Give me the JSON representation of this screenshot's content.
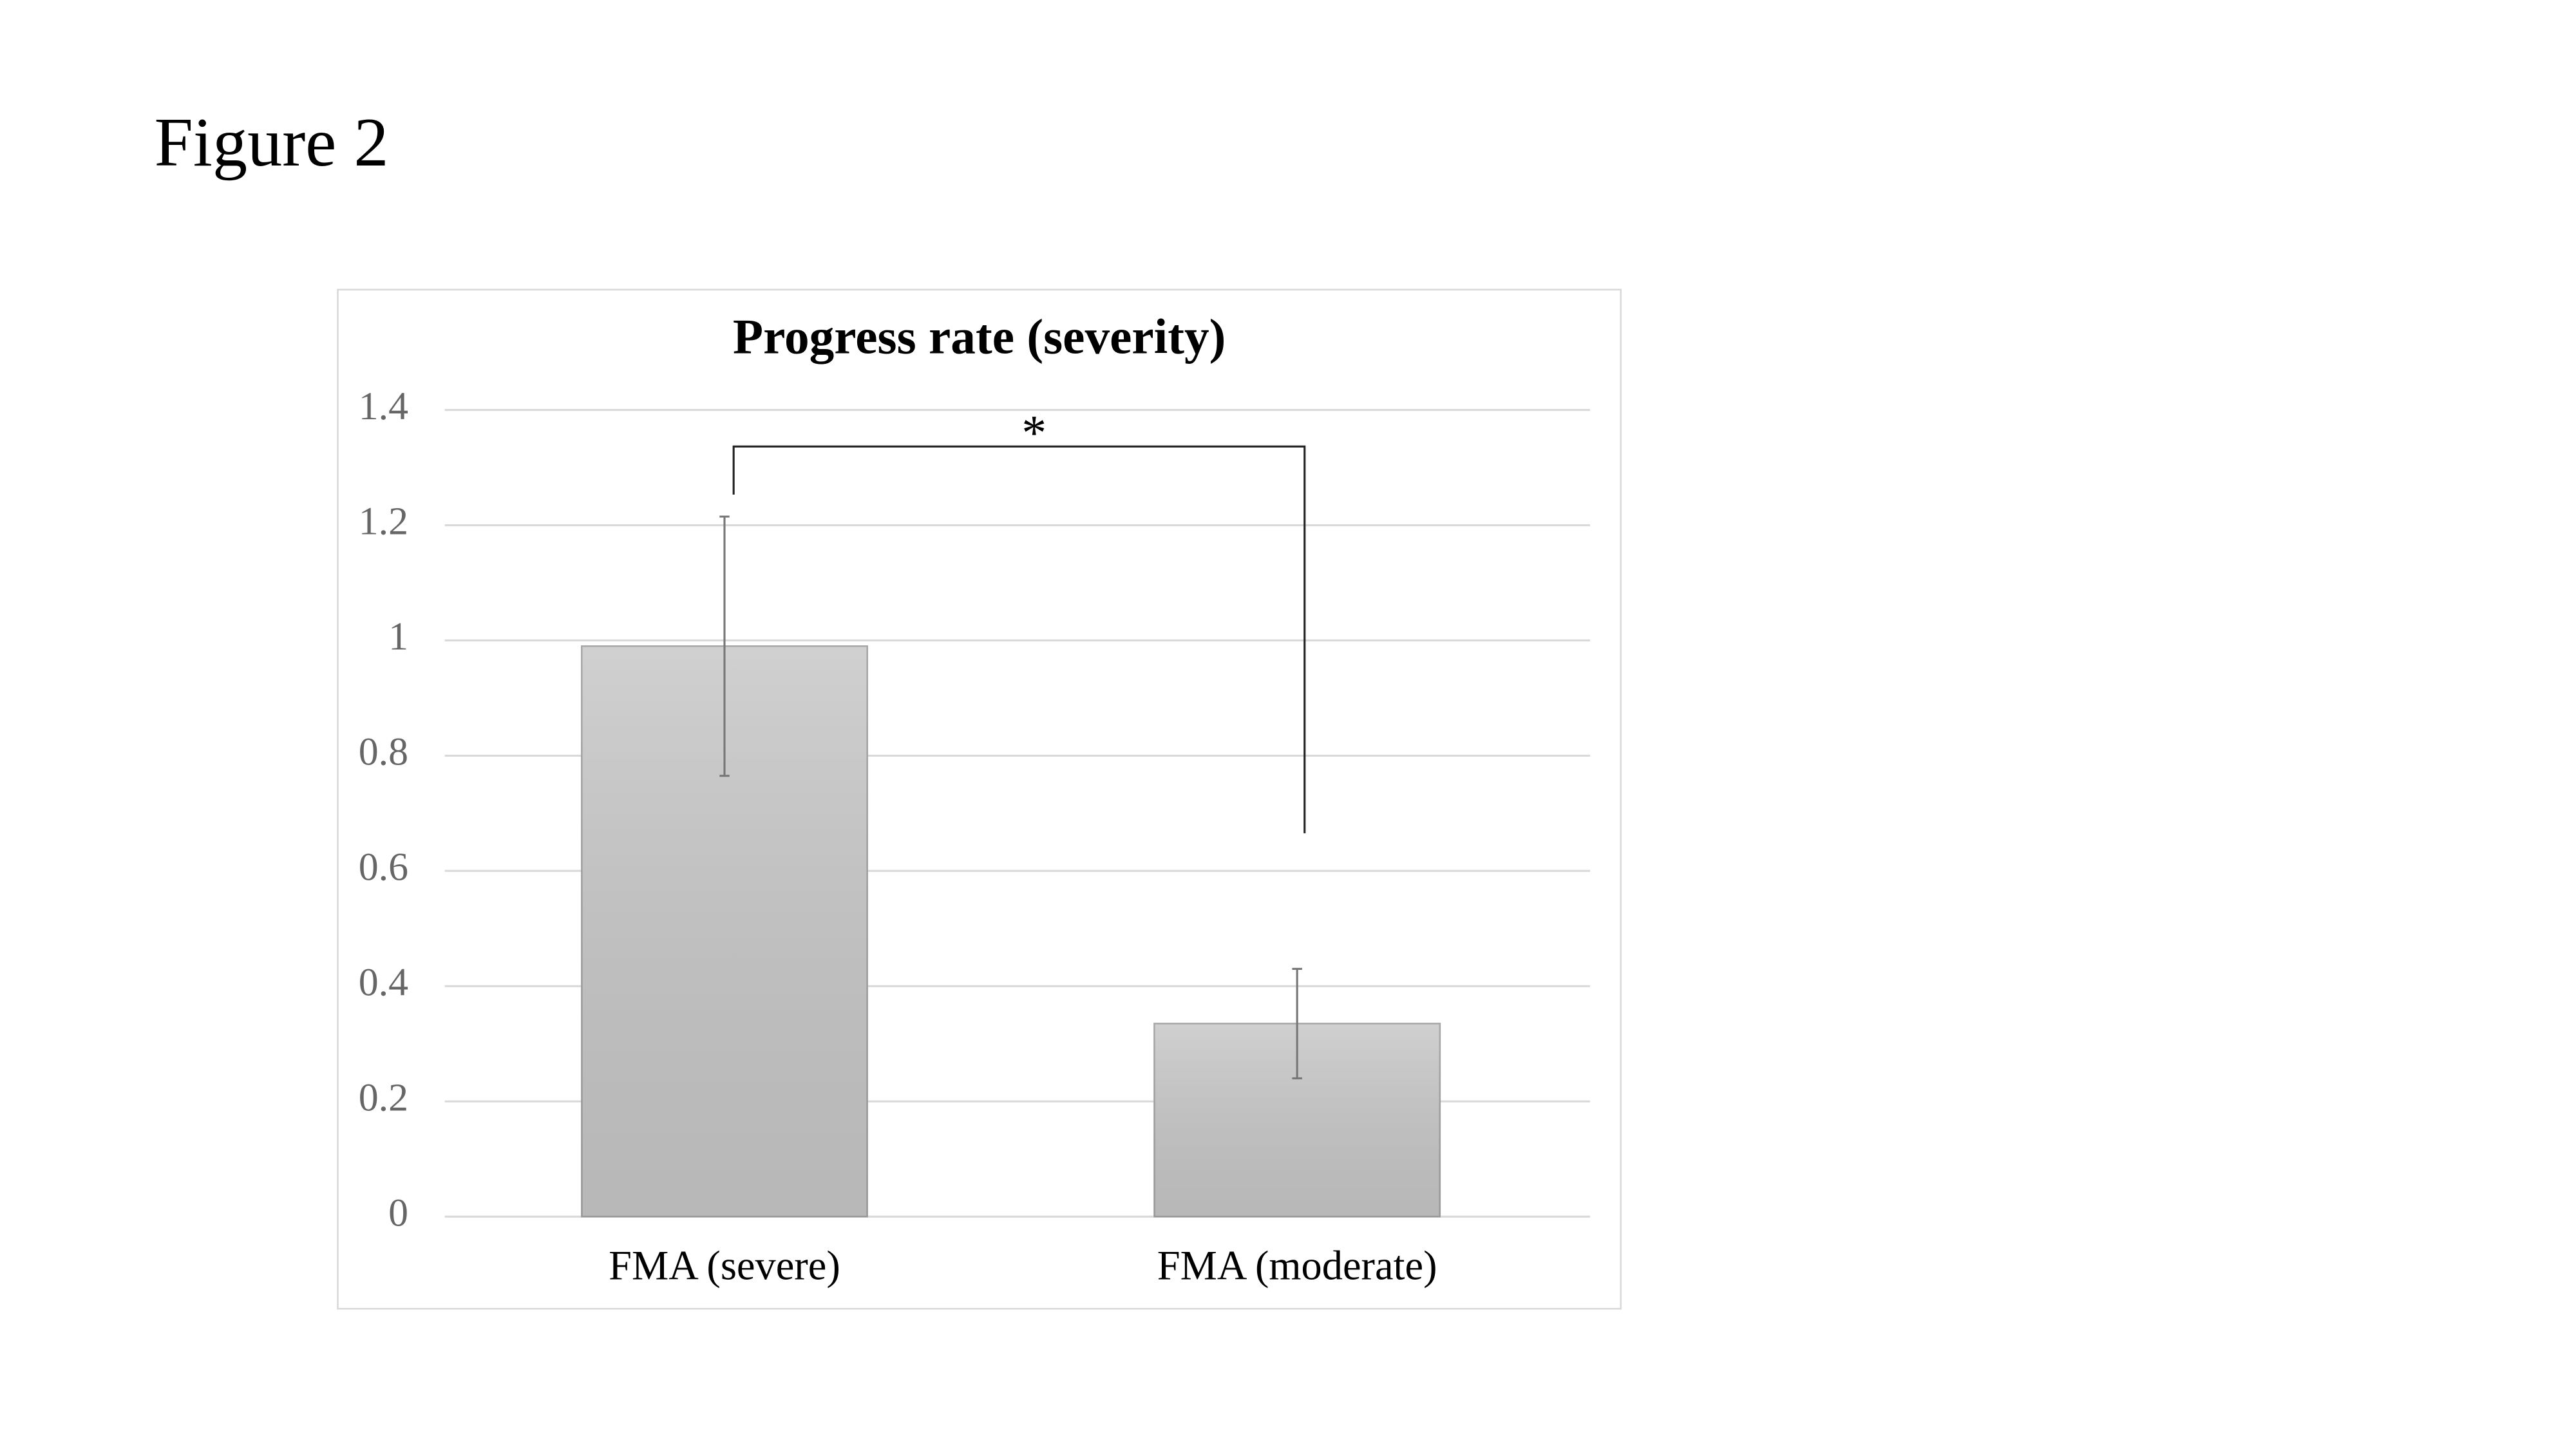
{
  "figure_label": "Figure 2",
  "chart_data": {
    "type": "bar",
    "title": "Progress rate (severity)",
    "categories": [
      "FMA (severe)",
      "FMA (moderate)"
    ],
    "values": [
      0.99,
      0.335
    ],
    "errors": [
      0.225,
      0.095
    ],
    "color": "#c8c8c8",
    "ylim": [
      0,
      1.4
    ],
    "yticks": [
      0,
      0.2,
      0.4,
      0.6,
      0.8,
      1,
      1.2,
      1.4
    ],
    "grid": true,
    "annotation": "*"
  }
}
